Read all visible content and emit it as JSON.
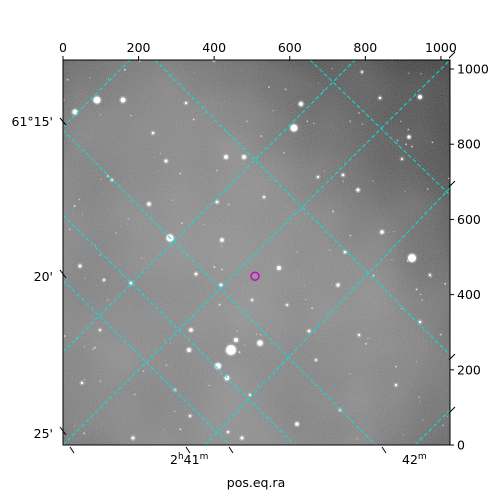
{
  "figure": {
    "xlabel": "pos.eq.ra",
    "pixel_axis_x": {
      "ticks": [
        0,
        200,
        400,
        600,
        800,
        1000
      ],
      "labels": [
        "0",
        "200",
        "400",
        "600",
        "800",
        "1000"
      ],
      "range": [
        0,
        1024
      ]
    },
    "pixel_axis_y": {
      "ticks": [
        0,
        200,
        400,
        600,
        800,
        1000
      ],
      "labels": [
        "0",
        "200",
        "400",
        "600",
        "800",
        "1000"
      ],
      "range": [
        0,
        1024
      ]
    },
    "dec_labels": [
      "61°15'",
      "20'",
      "25'"
    ],
    "ra_labels": [
      {
        "prefix": "2",
        "sup1": "h",
        "mid": "41",
        "sup2": "m"
      },
      {
        "prefix": "42",
        "sup1": "m",
        "mid": "",
        "sup2": ""
      }
    ],
    "grid_color": "#00e5e5",
    "marker_color": "#cc00cc",
    "marker_pixel": [
      508,
      449
    ]
  }
}
